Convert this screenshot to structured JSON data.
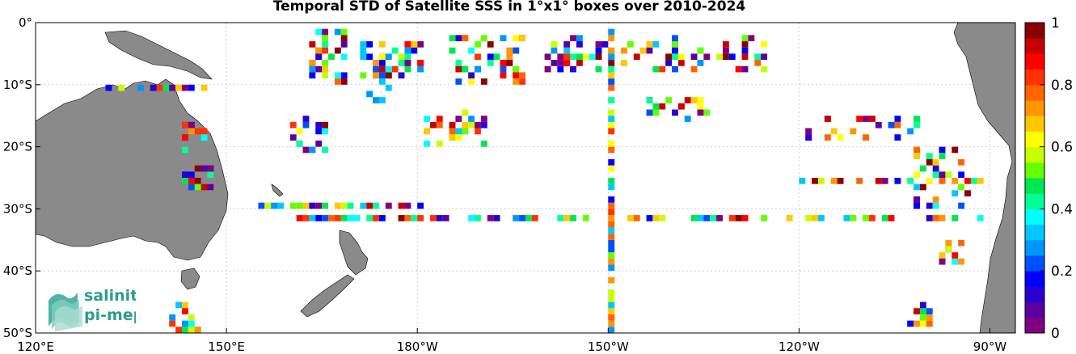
{
  "chart_data": {
    "type": "heatmap",
    "title": "Temporal STD of Satellite SSS in 1°x1° boxes over 2010-2024",
    "x_ticks": [
      "120°E",
      "150°E",
      "180°W",
      "150°W",
      "120°W",
      "90°W"
    ],
    "y_ticks": [
      "0°",
      "10°S",
      "20°S",
      "30°S",
      "40°S",
      "50°S"
    ],
    "xlim": [
      120,
      274
    ],
    "ylim": [
      -50,
      0
    ],
    "grid": true,
    "colorbar": {
      "min": 0,
      "max": 1,
      "ticks": [
        "1",
        "0.8",
        "0.6",
        "0.4",
        "0.2",
        "0"
      ],
      "colors": [
        "#800080",
        "#5a00a0",
        "#2800d0",
        "#0000ff",
        "#0050ff",
        "#0096ff",
        "#00c8ff",
        "#00ffff",
        "#00ff96",
        "#00e650",
        "#64ff00",
        "#c8ff00",
        "#ffff00",
        "#ffc800",
        "#ff9600",
        "#ff6400",
        "#ff3200",
        "#ff0000",
        "#c80000",
        "#8b0000"
      ]
    },
    "tracks": [
      {
        "name": "lat 32S row",
        "lat": -31.5,
        "lon_from": 155,
        "lon_to": 268,
        "step": 1,
        "gap_every": 3
      },
      {
        "name": "lat 30S row",
        "lat": -29.5,
        "lon_from": 155,
        "lon_to": 180,
        "step": 1,
        "gap_every": 4
      },
      {
        "name": "lon 150W column",
        "lon": 210.5,
        "lat_from": -50,
        "lat_to": 0,
        "step": 1,
        "gap_every": 5
      },
      {
        "name": "lat 25S row",
        "lat": -25.5,
        "lon_from": 240,
        "lon_to": 268,
        "step": 1,
        "gap_every": 3
      },
      {
        "name": "lat 10S row",
        "lat": -10.5,
        "lon_from": 131,
        "lon_to": 146,
        "step": 1,
        "gap_every": 6
      }
    ]
  },
  "logo": {
    "line1": "salinity",
    "line2": "pi-mep"
  }
}
